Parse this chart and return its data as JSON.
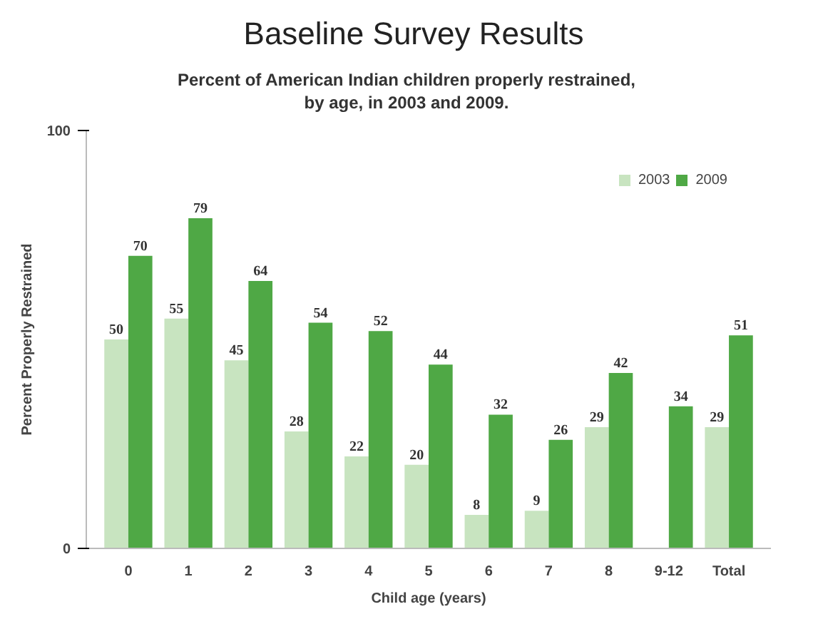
{
  "chart_data": {
    "type": "bar",
    "title": "Baseline Survey Results",
    "subtitle": "Percent of American Indian children properly restrained, by age, in 2003 and 2009.",
    "xlabel": "Child age (years)",
    "ylabel": "Percent Properly Restrained",
    "categories": [
      "0",
      "1",
      "2",
      "3",
      "4",
      "5",
      "6",
      "7",
      "8",
      "9-12",
      "Total"
    ],
    "series": [
      {
        "name": "2003",
        "color": "#c8e4c0",
        "values": [
          50,
          55,
          45,
          28,
          22,
          20,
          8,
          9,
          29,
          null,
          29
        ]
      },
      {
        "name": "2009",
        "color": "#4fa845",
        "values": [
          70,
          79,
          64,
          54,
          52,
          44,
          32,
          26,
          42,
          34,
          51
        ]
      }
    ],
    "ylim": [
      0,
      100
    ],
    "yticks": [
      0,
      100
    ],
    "grid": false,
    "legend": "top right",
    "data_labels": true
  }
}
